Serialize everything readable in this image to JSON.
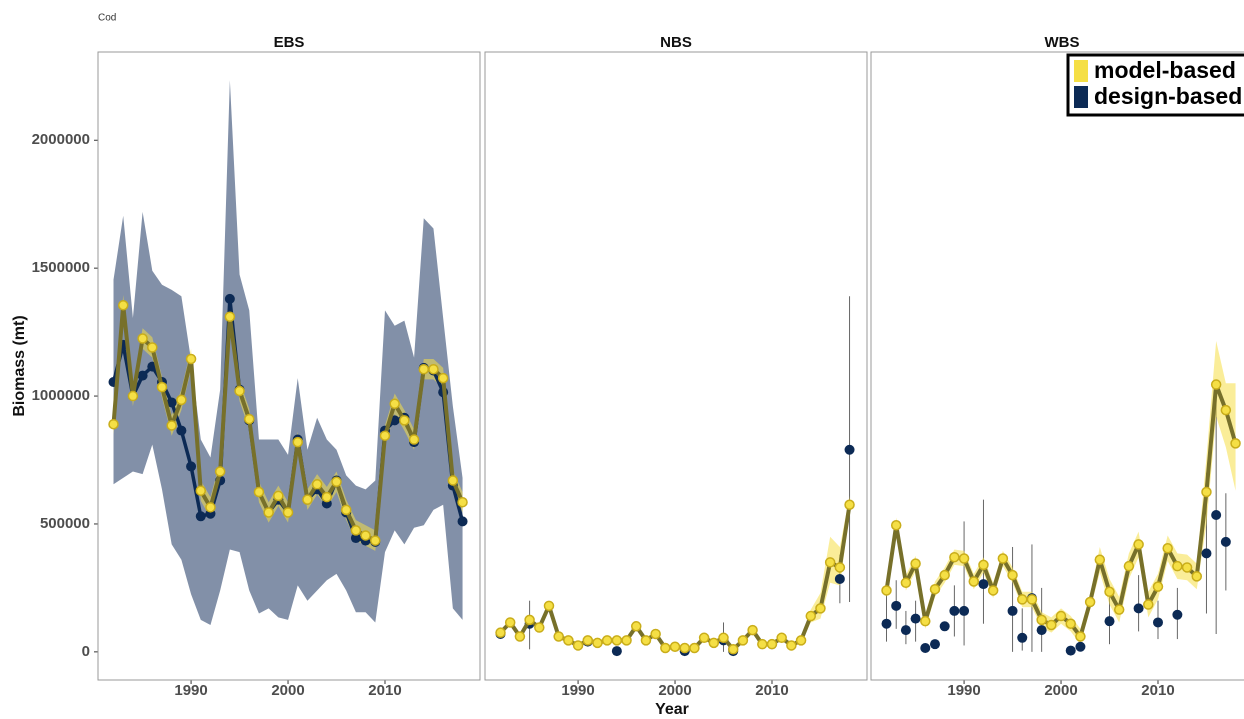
{
  "chart_data": {
    "type": "line",
    "title": "Cod",
    "xlabel": "Year",
    "ylabel": "Biomass (mt)",
    "x": [
      1982,
      1983,
      1984,
      1985,
      1986,
      1987,
      1988,
      1989,
      1990,
      1991,
      1992,
      1993,
      1994,
      1995,
      1996,
      1997,
      1998,
      1999,
      2000,
      2001,
      2002,
      2003,
      2004,
      2005,
      2006,
      2007,
      2008,
      2009,
      2010,
      2011,
      2012,
      2013,
      2014,
      2015,
      2016,
      2017,
      2018
    ],
    "xlim": [
      1980.4,
      2019.8
    ],
    "xticks": [
      1990,
      2000,
      2010
    ],
    "ylim": [
      -110000,
      2345000
    ],
    "yticks": [
      0,
      500000,
      1000000,
      1500000,
      2000000
    ],
    "legend": "top-right",
    "series": [
      {
        "name": "model-based",
        "color": "#f5df45",
        "line_color": "#77702a"
      },
      {
        "name": "design-based",
        "color": "#0c2a55",
        "line_color": "#0c2a55"
      }
    ],
    "panels": [
      {
        "title": "EBS",
        "series": [
          {
            "values": [
              890000,
              1355000,
              1000000,
              1225000,
              1190000,
              1035000,
              885000,
              985000,
              1145000,
              630000,
              565000,
              705000,
              1310000,
              1020000,
              910000,
              625000,
              545000,
              610000,
              545000,
              820000,
              595000,
              655000,
              605000,
              665000,
              555000,
              475000,
              455000,
              435000,
              845000,
              970000,
              905000,
              830000,
              1105000,
              1105000,
              1070000,
              670000,
              585000
            ],
            "lower": [
              850000,
              1315000,
              960000,
              1185000,
              1150000,
              995000,
              845000,
              945000,
              1105000,
              590000,
              525000,
              665000,
              1270000,
              980000,
              870000,
              585000,
              505000,
              570000,
              505000,
              780000,
              555000,
              615000,
              565000,
              625000,
              515000,
              435000,
              415000,
              395000,
              805000,
              930000,
              865000,
              790000,
              1065000,
              1065000,
              1030000,
              630000,
              545000
            ],
            "upper": [
              930000,
              1395000,
              1040000,
              1265000,
              1230000,
              1075000,
              925000,
              1025000,
              1185000,
              670000,
              605000,
              745000,
              1350000,
              1060000,
              950000,
              665000,
              585000,
              650000,
              585000,
              860000,
              635000,
              695000,
              645000,
              705000,
              595000,
              515000,
              495000,
              475000,
              885000,
              1010000,
              945000,
              870000,
              1145000,
              1145000,
              1110000,
              710000,
              625000
            ]
          },
          {
            "values": [
              1055000,
              1200000,
              1000000,
              1080000,
              1115000,
              1055000,
              975000,
              865000,
              725000,
              530000,
              540000,
              670000,
              1380000,
              1025000,
              905000,
              625000,
              545000,
              595000,
              545000,
              830000,
              595000,
              635000,
              580000,
              670000,
              545000,
              445000,
              435000,
              430000,
              865000,
              905000,
              915000,
              820000,
              1110000,
              1100000,
              1015000,
              650000,
              510000
            ],
            "lower": [
              655000,
              680000,
              705000,
              695000,
              810000,
              635000,
              420000,
              360000,
              225000,
              125000,
              105000,
              240000,
              400000,
              390000,
              240000,
              150000,
              170000,
              135000,
              125000,
              260000,
              200000,
              240000,
              280000,
              305000,
              240000,
              155000,
              155000,
              115000,
              390000,
              475000,
              420000,
              485000,
              495000,
              555000,
              575000,
              170000,
              125000
            ],
            "upper": [
              1455000,
              1705000,
              1305000,
              1720000,
              1490000,
              1435000,
              1415000,
              1390000,
              1140000,
              830000,
              760000,
              1025000,
              2235000,
              1475000,
              1335000,
              830000,
              830000,
              830000,
              770000,
              1070000,
              790000,
              915000,
              830000,
              790000,
              690000,
              650000,
              635000,
              670000,
              1335000,
              1275000,
              1295000,
              1150000,
              1695000,
              1655000,
              1305000,
              960000,
              680000
            ]
          }
        ]
      },
      {
        "title": "NBS",
        "series": [
          {
            "values": [
              75000,
              115000,
              60000,
              125000,
              95000,
              180000,
              60000,
              45000,
              25000,
              45000,
              35000,
              45000,
              45000,
              45000,
              100000,
              45000,
              70000,
              15000,
              20000,
              15000,
              15000,
              55000,
              35000,
              55000,
              10000,
              45000,
              85000,
              30000,
              30000,
              55000,
              25000,
              45000,
              140000,
              170000,
              350000,
              330000,
              575000
            ],
            "lower": [
              65000,
              105000,
              50000,
              115000,
              85000,
              170000,
              50000,
              35000,
              15000,
              35000,
              25000,
              35000,
              35000,
              35000,
              90000,
              35000,
              60000,
              5000,
              10000,
              5000,
              5000,
              45000,
              25000,
              45000,
              0,
              35000,
              75000,
              20000,
              20000,
              45000,
              15000,
              35000,
              115000,
              130000,
              270000,
              260000,
              540000
            ],
            "upper": [
              85000,
              125000,
              70000,
              135000,
              105000,
              190000,
              70000,
              55000,
              35000,
              55000,
              45000,
              55000,
              55000,
              55000,
              110000,
              55000,
              80000,
              25000,
              30000,
              25000,
              25000,
              65000,
              45000,
              65000,
              20000,
              55000,
              95000,
              40000,
              40000,
              65000,
              35000,
              55000,
              165000,
              230000,
              450000,
              410000,
              610000
            ]
          },
          {
            "values": [
              70000,
              null,
              null,
              110000,
              null,
              null,
              60000,
              null,
              null,
              40000,
              null,
              null,
              3000,
              null,
              null,
              null,
              null,
              null,
              null,
              3000,
              null,
              null,
              null,
              45000,
              3000,
              null,
              null,
              null,
              30000,
              null,
              null,
              null,
              null,
              null,
              null,
              285000,
              790000
            ],
            "lower": [
              null,
              null,
              null,
              10000,
              null,
              null,
              null,
              null,
              null,
              null,
              null,
              null,
              null,
              null,
              null,
              null,
              null,
              null,
              null,
              null,
              null,
              null,
              null,
              0,
              null,
              null,
              null,
              null,
              null,
              null,
              null,
              null,
              null,
              null,
              null,
              190000,
              195000
            ],
            "upper": [
              null,
              null,
              null,
              200000,
              null,
              null,
              null,
              null,
              null,
              null,
              null,
              null,
              null,
              null,
              null,
              null,
              null,
              null,
              null,
              null,
              null,
              null,
              null,
              115000,
              null,
              null,
              null,
              null,
              null,
              null,
              null,
              null,
              null,
              null,
              null,
              380000,
              1390000
            ]
          }
        ]
      },
      {
        "title": "WBS",
        "series": [
          {
            "values": [
              240000,
              495000,
              270000,
              345000,
              120000,
              245000,
              300000,
              370000,
              365000,
              275000,
              340000,
              240000,
              365000,
              300000,
              205000,
              205000,
              125000,
              105000,
              140000,
              110000,
              60000,
              195000,
              360000,
              235000,
              165000,
              335000,
              420000,
              185000,
              255000,
              405000,
              335000,
              330000,
              295000,
              625000,
              1045000,
              945000,
              815000
            ],
            "lower": [
              210000,
              465000,
              240000,
              315000,
              90000,
              215000,
              270000,
              340000,
              335000,
              245000,
              310000,
              210000,
              335000,
              270000,
              175000,
              175000,
              95000,
              75000,
              110000,
              80000,
              30000,
              165000,
              310000,
              185000,
              115000,
              285000,
              370000,
              135000,
              205000,
              355000,
              285000,
              280000,
              245000,
              500000,
              920000,
              800000,
              630000
            ],
            "upper": [
              270000,
              525000,
              300000,
              375000,
              150000,
              275000,
              330000,
              400000,
              395000,
              305000,
              370000,
              270000,
              395000,
              330000,
              235000,
              235000,
              155000,
              135000,
              170000,
              140000,
              90000,
              225000,
              410000,
              285000,
              215000,
              385000,
              470000,
              235000,
              305000,
              455000,
              385000,
              380000,
              345000,
              760000,
              1215000,
              1050000,
              1050000
            ]
          },
          {
            "values": [
              110000,
              180000,
              85000,
              130000,
              15000,
              30000,
              100000,
              160000,
              160000,
              null,
              265000,
              null,
              null,
              160000,
              55000,
              210000,
              85000,
              null,
              null,
              5000,
              20000,
              null,
              null,
              120000,
              null,
              null,
              170000,
              null,
              115000,
              null,
              145000,
              null,
              null,
              385000,
              535000,
              430000,
              null
            ],
            "lower": [
              40000,
              90000,
              30000,
              40000,
              null,
              null,
              null,
              60000,
              25000,
              null,
              110000,
              null,
              null,
              0,
              5000,
              0,
              0,
              null,
              null,
              null,
              null,
              null,
              null,
              30000,
              null,
              null,
              80000,
              null,
              50000,
              null,
              50000,
              null,
              null,
              150000,
              70000,
              240000,
              null
            ],
            "upper": [
              230000,
              280000,
              160000,
              200000,
              null,
              null,
              null,
              260000,
              510000,
              null,
              595000,
              null,
              null,
              410000,
              170000,
              420000,
              250000,
              null,
              null,
              null,
              null,
              null,
              null,
              230000,
              null,
              null,
              300000,
              null,
              200000,
              null,
              250000,
              null,
              null,
              700000,
              1000000,
              620000,
              null
            ]
          }
        ]
      }
    ]
  }
}
